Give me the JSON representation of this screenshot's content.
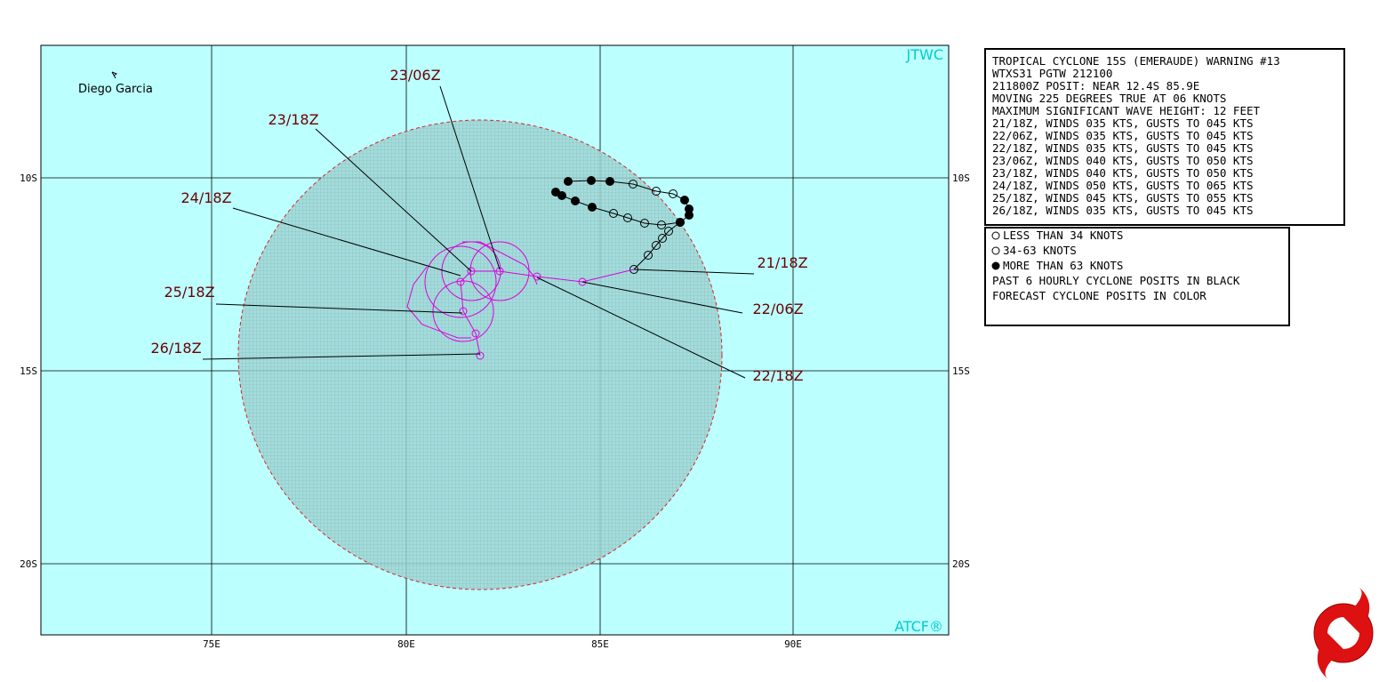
{
  "map": {
    "corner_labels": {
      "top_right": "JTWC",
      "bottom_right": "ATCF®"
    },
    "place": "Diego Garcia",
    "lat_labels": [
      "10S",
      "15S",
      "20S"
    ],
    "lon_labels": [
      "75E",
      "80E",
      "85E",
      "90E"
    ],
    "time_labels": [
      "23/06Z",
      "23/18Z",
      "24/18Z",
      "25/18Z",
      "26/18Z",
      "21/18Z",
      "22/06Z",
      "22/18Z"
    ]
  },
  "warning_box": {
    "lines": [
      "TROPICAL CYCLONE 15S (EMERAUDE) WARNING #13",
      "WTXS31 PGTW 212100",
      "211800Z POSIT: NEAR 12.4S 85.9E",
      "MOVING 225 DEGREES TRUE AT 06 KNOTS",
      "MAXIMUM SIGNIFICANT WAVE HEIGHT: 12 FEET",
      "21/18Z, WINDS 035 KTS, GUSTS TO 045 KTS",
      "22/06Z, WINDS 035 KTS, GUSTS TO 045 KTS",
      "22/18Z, WINDS 035 KTS, GUSTS TO 045 KTS",
      "23/06Z, WINDS 040 KTS, GUSTS TO 050 KTS",
      "23/18Z, WINDS 040 KTS, GUSTS TO 050 KTS",
      "24/18Z, WINDS 050 KTS, GUSTS TO 065 KTS",
      "25/18Z, WINDS 045 KTS, GUSTS TO 055 KTS",
      "26/18Z, WINDS 035 KTS, GUSTS TO 045 KTS"
    ]
  },
  "legend_box": {
    "lines": [
      "LESS THAN 34 KNOTS",
      "34-63 KNOTS",
      "MORE THAN 63 KNOTS",
      "PAST 6 HOURLY CYCLONE POSITS IN BLACK",
      "FORECAST CYCLONE POSITS IN COLOR"
    ]
  }
}
